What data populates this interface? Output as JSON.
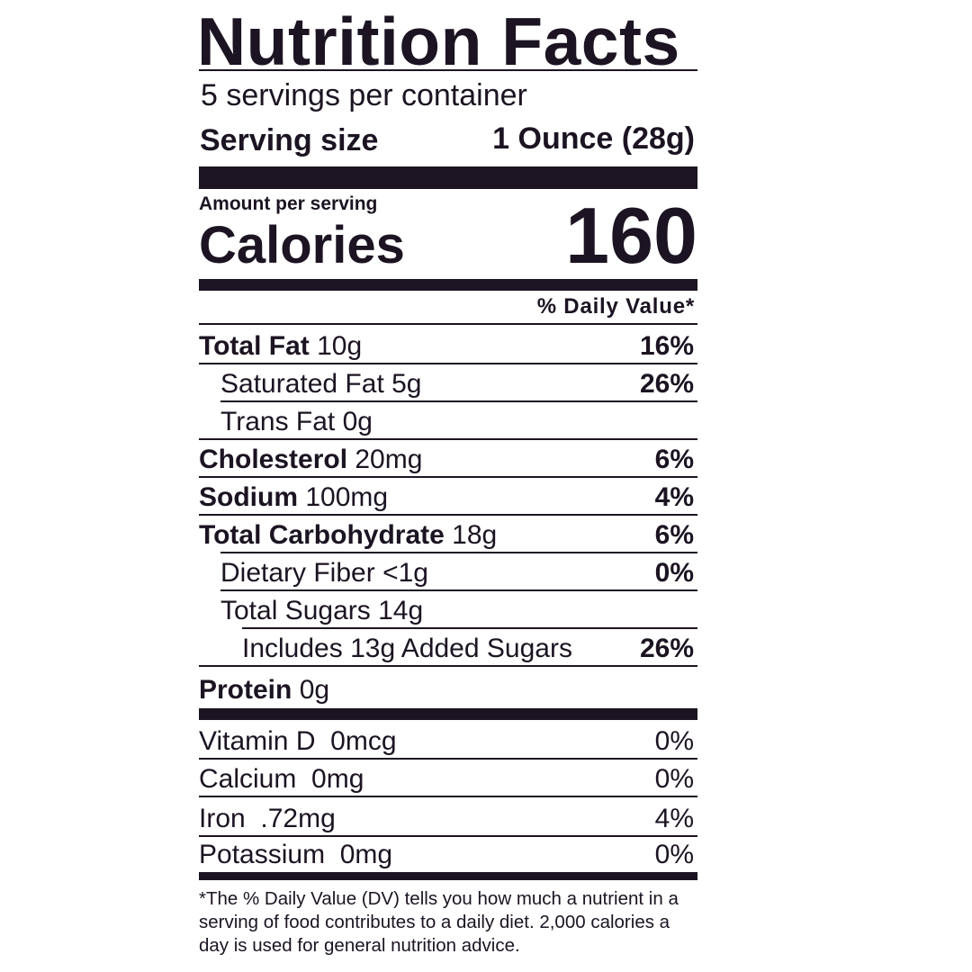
{
  "label": {
    "title": "Nutrition Facts",
    "servings_per_container": "5 servings per container",
    "serving_size_label": "Serving size",
    "serving_size_value": "1 Ounce (28g)",
    "amount_per_serving": "Amount per serving",
    "calories_label": "Calories",
    "calories_value": "160",
    "daily_value_header": "% Daily Value*",
    "nutrients": [
      {
        "name": "Total Fat",
        "amount": "10g",
        "dv": "16%"
      },
      {
        "name": "Saturated Fat",
        "amount": "5g",
        "dv": "26%"
      },
      {
        "name": "Trans Fat",
        "amount": "0g",
        "dv": ""
      },
      {
        "name": "Cholesterol",
        "amount": "20mg",
        "dv": "6%"
      },
      {
        "name": "Sodium",
        "amount": "100mg",
        "dv": "4%"
      },
      {
        "name": "Total Carbohydrate",
        "amount": "18g",
        "dv": "6%"
      },
      {
        "name": "Dietary Fiber",
        "amount": "<1g",
        "dv": "0%"
      },
      {
        "name": "Total Sugars",
        "amount": "14g",
        "dv": ""
      },
      {
        "name": "Includes 13g Added Sugars",
        "amount": "",
        "dv": "26%"
      },
      {
        "name": "Protein",
        "amount": "0g",
        "dv": ""
      }
    ],
    "vitamins": [
      {
        "name": "Vitamin D",
        "amount": "0mcg",
        "dv": "0%"
      },
      {
        "name": "Calcium",
        "amount": "0mg",
        "dv": "0%"
      },
      {
        "name": "Iron",
        "amount": ".72mg",
        "dv": "4%"
      },
      {
        "name": "Potassium",
        "amount": "0mg",
        "dv": "0%"
      }
    ],
    "footnote": "*The % Daily Value (DV) tells you how much a nutrient in a serving of food contributes to a daily diet. 2,000 calories a day is used for general nutrition advice.",
    "colors": {
      "ink": "#1c1422",
      "background": "#ffffff"
    }
  }
}
